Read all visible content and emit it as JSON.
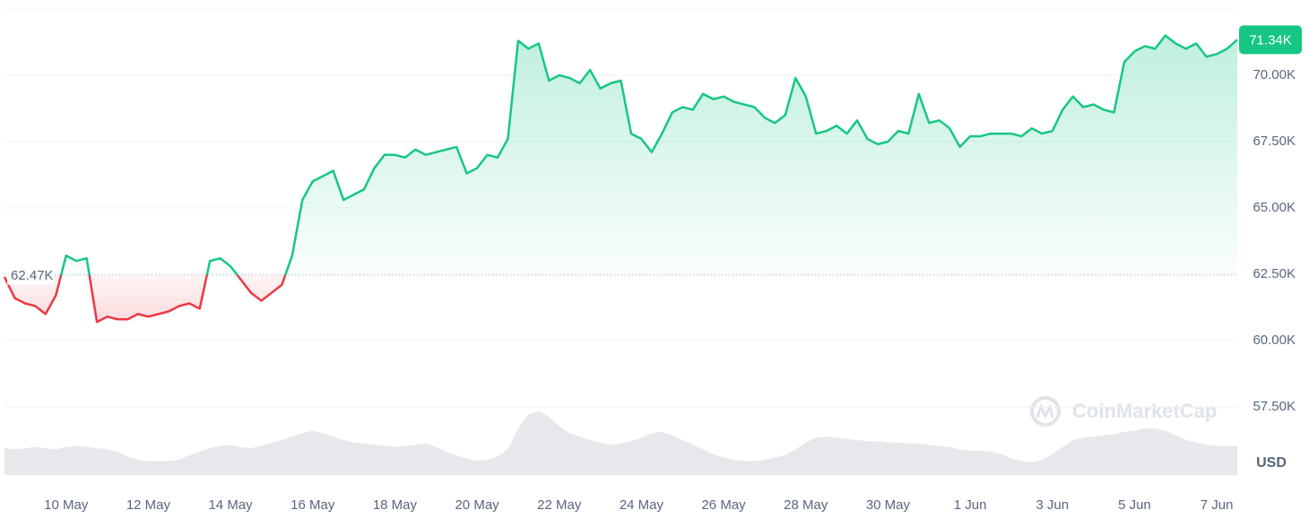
{
  "chart_data": {
    "type": "line",
    "categories": [
      null,
      null,
      null,
      null,
      null,
      null,
      "10 May",
      null,
      null,
      null,
      null,
      null,
      null,
      null,
      "12 May",
      null,
      null,
      null,
      null,
      null,
      null,
      null,
      "14 May",
      null,
      null,
      null,
      null,
      null,
      null,
      null,
      "16 May",
      null,
      null,
      null,
      null,
      null,
      null,
      null,
      "18 May",
      null,
      null,
      null,
      null,
      null,
      null,
      null,
      "20 May",
      null,
      null,
      null,
      null,
      null,
      null,
      null,
      "22 May",
      null,
      null,
      null,
      null,
      null,
      null,
      null,
      "24 May",
      null,
      null,
      null,
      null,
      null,
      null,
      null,
      "26 May",
      null,
      null,
      null,
      null,
      null,
      null,
      null,
      "28 May",
      null,
      null,
      null,
      null,
      null,
      null,
      null,
      "30 May",
      null,
      null,
      null,
      null,
      null,
      null,
      null,
      "1 Jun",
      null,
      null,
      null,
      null,
      null,
      null,
      null,
      "3 Jun",
      null,
      null,
      null,
      null,
      null,
      null,
      null,
      "5 Jun",
      null,
      null,
      null,
      null,
      null,
      null,
      null,
      "7 Jun",
      null,
      null
    ],
    "series": [
      {
        "name": "Price",
        "color": "#16c784",
        "below_color": "#ea3943",
        "values": [
          62400,
          61600,
          61400,
          61300,
          61000,
          61700,
          63200,
          63000,
          63100,
          60700,
          60900,
          60800,
          60800,
          61000,
          60900,
          61000,
          61100,
          61300,
          61400,
          61200,
          63000,
          63100,
          62800,
          62300,
          61800,
          61500,
          61800,
          62100,
          63200,
          65300,
          66000,
          66200,
          66400,
          65300,
          65500,
          65700,
          66500,
          67000,
          67000,
          66900,
          67200,
          67000,
          67100,
          67200,
          67300,
          66300,
          66500,
          67000,
          66900,
          67600,
          71300,
          71000,
          71200,
          69800,
          70000,
          69900,
          69700,
          70200,
          69500,
          69700,
          69800,
          67800,
          67600,
          67100,
          67800,
          68600,
          68800,
          68700,
          69300,
          69100,
          69200,
          69000,
          68900,
          68800,
          68400,
          68200,
          68500,
          69900,
          69200,
          67800,
          67900,
          68100,
          67800,
          68300,
          67600,
          67400,
          67500,
          67900,
          67800,
          69300,
          68200,
          68300,
          68000,
          67300,
          67700,
          67700,
          67800,
          67800,
          67800,
          67700,
          68000,
          67800,
          67900,
          68700,
          69200,
          68800,
          68900,
          68700,
          68600,
          70500,
          70900,
          71100,
          71000,
          71500,
          71200,
          71000,
          71200,
          70700,
          70800,
          71000,
          71340
        ]
      },
      {
        "name": "Volume",
        "color": "#e8e8ec",
        "axis": "y2",
        "values": [
          23,
          22,
          23,
          24,
          23,
          22,
          24,
          25,
          24,
          23,
          22,
          20,
          16,
          13,
          12,
          12,
          12,
          13,
          17,
          20,
          23,
          25,
          26,
          24,
          23,
          25,
          28,
          30,
          33,
          36,
          38,
          36,
          33,
          30,
          28,
          27,
          26,
          25,
          24,
          25,
          26,
          27,
          24,
          20,
          17,
          14,
          12,
          13,
          16,
          22,
          40,
          52,
          55,
          50,
          42,
          36,
          33,
          30,
          28,
          26,
          27,
          29,
          32,
          36,
          37,
          34,
          30,
          26,
          22,
          18,
          15,
          13,
          12,
          12,
          13,
          15,
          17,
          22,
          28,
          32,
          33,
          32,
          31,
          30,
          29,
          29,
          28,
          28,
          27,
          27,
          26,
          25,
          24,
          22,
          21,
          21,
          20,
          18,
          14,
          12,
          11,
          13,
          18,
          24,
          30,
          32,
          33,
          34,
          35,
          37,
          38,
          40,
          40,
          38,
          34,
          30,
          28,
          26,
          25,
          25,
          25
        ]
      }
    ],
    "ylim": [
      54930,
      72500
    ],
    "yticks": [
      {
        "value": 57500,
        "label": "57.50K"
      },
      {
        "value": 60000,
        "label": "60.00K"
      },
      {
        "value": 62500,
        "label": "62.50K"
      },
      {
        "value": 65000,
        "label": "65.00K"
      },
      {
        "value": 67500,
        "label": "67.50K"
      },
      {
        "value": 70000,
        "label": "70.00K"
      }
    ],
    "y2lim": [
      0,
      400
    ],
    "grid": true,
    "baseline": {
      "value": 62470,
      "label": "62.47K"
    },
    "last_price": {
      "value": 71340,
      "label": "71.34K"
    },
    "unit": "USD",
    "watermark": "CoinMarketCap"
  }
}
